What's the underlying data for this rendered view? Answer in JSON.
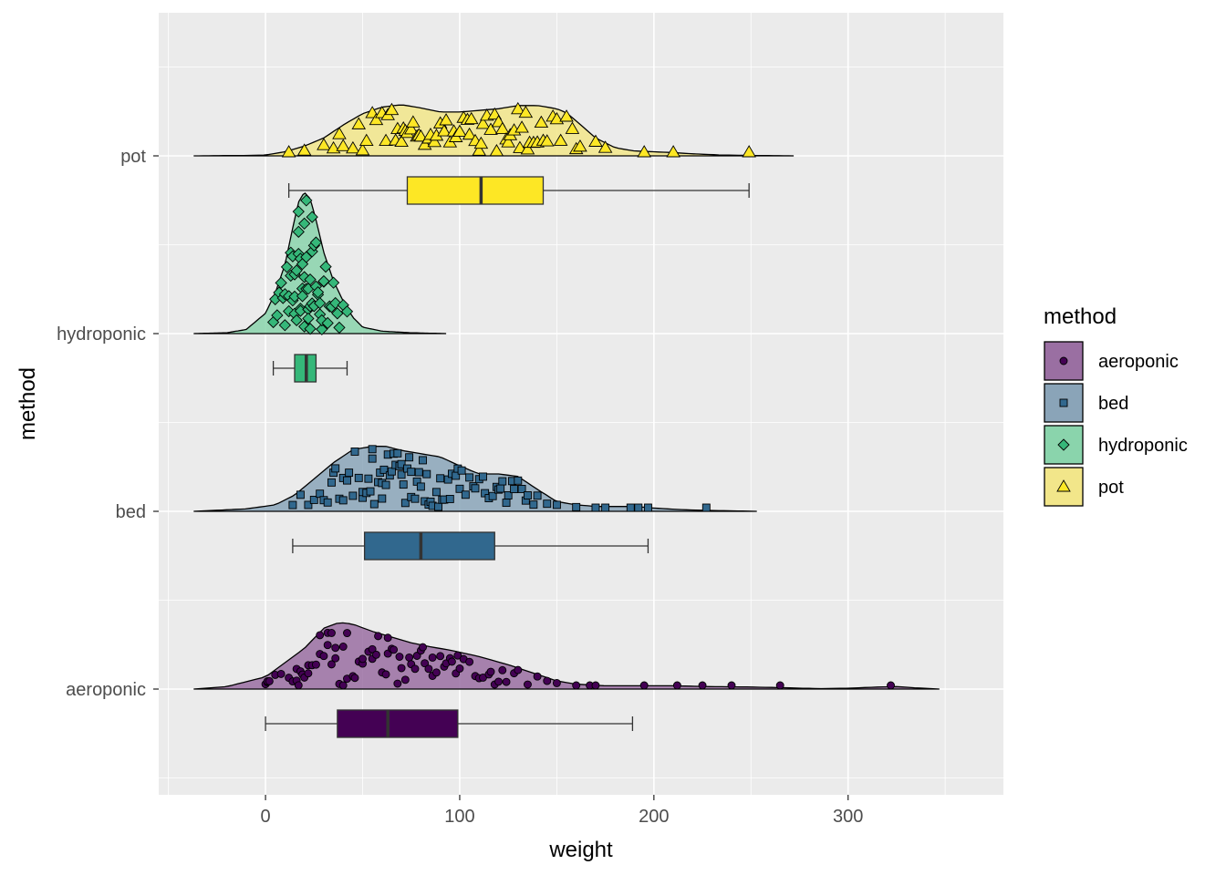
{
  "chart_data": {
    "type": "raincloud",
    "xlabel": "weight",
    "ylabel": "method",
    "xlim": [
      -55,
      380
    ],
    "x_ticks": [
      0,
      100,
      200,
      300
    ],
    "categories": [
      "aeroponic",
      "bed",
      "hydroponic",
      "pot"
    ],
    "grid": true,
    "legend": {
      "title": "method",
      "placement": "right",
      "entries": [
        "aeroponic",
        "bed",
        "hydroponic",
        "pot"
      ]
    },
    "series": [
      {
        "name": "aeroponic",
        "fill_color": "#440154",
        "density_color": "#9a6fa2",
        "shape": "circle",
        "density_range": [
          -37,
          347
        ],
        "density": [
          [
            -37,
            0.0
          ],
          [
            -20,
            0.03
          ],
          [
            0,
            0.15
          ],
          [
            20,
            0.5
          ],
          [
            30,
            0.75
          ],
          [
            38,
            0.82
          ],
          [
            45,
            0.8
          ],
          [
            55,
            0.71
          ],
          [
            65,
            0.64
          ],
          [
            75,
            0.57
          ],
          [
            85,
            0.52
          ],
          [
            95,
            0.48
          ],
          [
            110,
            0.4
          ],
          [
            125,
            0.3
          ],
          [
            140,
            0.18
          ],
          [
            150,
            0.1
          ],
          [
            160,
            0.06
          ],
          [
            175,
            0.04
          ],
          [
            190,
            0.04
          ],
          [
            210,
            0.04
          ],
          [
            230,
            0.03
          ],
          [
            250,
            0.025
          ],
          [
            270,
            0.015
          ],
          [
            285,
            0.005
          ],
          [
            300,
            0.01
          ],
          [
            315,
            0.025
          ],
          [
            325,
            0.03
          ],
          [
            335,
            0.015
          ],
          [
            347,
            0.0
          ]
        ],
        "box": {
          "min": 0,
          "q1": 37,
          "median": 63,
          "q3": 99,
          "max": 189
        },
        "points": [
          0,
          1,
          1,
          2,
          5,
          8,
          12,
          14,
          16,
          16,
          17,
          18,
          19,
          20,
          22,
          22,
          24,
          26,
          28,
          28,
          30,
          32,
          32,
          34,
          34,
          36,
          36,
          38,
          40,
          40,
          42,
          42,
          45,
          46,
          48,
          50,
          50,
          53,
          55,
          55,
          57,
          58,
          60,
          62,
          63,
          63,
          65,
          66,
          68,
          69,
          70,
          72,
          74,
          75,
          77,
          78,
          80,
          81,
          82,
          84,
          86,
          86,
          88,
          90,
          92,
          93,
          95,
          96,
          98,
          99,
          100,
          102,
          105,
          108,
          110,
          112,
          115,
          116,
          118,
          120,
          122,
          124,
          128,
          130,
          135,
          140,
          145,
          150,
          160,
          167,
          170,
          195,
          212,
          225,
          240,
          265,
          322
        ]
      },
      {
        "name": "bed",
        "fill_color": "#31688e",
        "density_color": "#8aa4b8",
        "shape": "square",
        "density_range": [
          -37,
          253
        ],
        "density": [
          [
            -37,
            0.0
          ],
          [
            -10,
            0.03
          ],
          [
            5,
            0.08
          ],
          [
            15,
            0.2
          ],
          [
            25,
            0.4
          ],
          [
            35,
            0.6
          ],
          [
            45,
            0.76
          ],
          [
            55,
            0.8
          ],
          [
            62,
            0.8
          ],
          [
            70,
            0.75
          ],
          [
            80,
            0.71
          ],
          [
            90,
            0.67
          ],
          [
            100,
            0.56
          ],
          [
            110,
            0.46
          ],
          [
            120,
            0.46
          ],
          [
            130,
            0.43
          ],
          [
            140,
            0.27
          ],
          [
            150,
            0.12
          ],
          [
            160,
            0.08
          ],
          [
            170,
            0.06
          ],
          [
            180,
            0.06
          ],
          [
            190,
            0.06
          ],
          [
            200,
            0.04
          ],
          [
            215,
            0.02
          ],
          [
            230,
            0.01
          ],
          [
            253,
            0.0
          ]
        ],
        "box": {
          "min": 14,
          "q1": 51,
          "median": 80,
          "q3": 118,
          "max": 197
        },
        "points": [
          14,
          18,
          22,
          25,
          28,
          30,
          32,
          34,
          35,
          36,
          38,
          40,
          40,
          42,
          43,
          45,
          46,
          48,
          50,
          50,
          52,
          53,
          54,
          55,
          55,
          56,
          58,
          59,
          60,
          60,
          61,
          62,
          63,
          64,
          65,
          66,
          67,
          68,
          69,
          70,
          70,
          71,
          72,
          73,
          74,
          75,
          75,
          77,
          78,
          79,
          80,
          81,
          82,
          83,
          84,
          85,
          86,
          88,
          89,
          90,
          91,
          92,
          94,
          95,
          96,
          98,
          99,
          100,
          101,
          103,
          105,
          107,
          108,
          110,
          112,
          113,
          115,
          117,
          119,
          120,
          121,
          122,
          124,
          125,
          127,
          128,
          130,
          132,
          134,
          135,
          138,
          140,
          145,
          150,
          160,
          170,
          175,
          188,
          192,
          197,
          227
        ]
      },
      {
        "name": "hydroponic",
        "fill_color": "#35b779",
        "density_color": "#8ad4ac",
        "shape": "diamond",
        "density_range": [
          -37,
          93
        ],
        "density": [
          [
            -37,
            0.0
          ],
          [
            -20,
            0.01
          ],
          [
            -10,
            0.05
          ],
          [
            0,
            0.25
          ],
          [
            5,
            0.5
          ],
          [
            10,
            0.85
          ],
          [
            14,
            1.3
          ],
          [
            17,
            1.62
          ],
          [
            20,
            1.74
          ],
          [
            23,
            1.66
          ],
          [
            26,
            1.4
          ],
          [
            30,
            1.0
          ],
          [
            35,
            0.65
          ],
          [
            40,
            0.4
          ],
          [
            45,
            0.2
          ],
          [
            50,
            0.08
          ],
          [
            60,
            0.03
          ],
          [
            75,
            0.01
          ],
          [
            93,
            0.0
          ]
        ],
        "box": {
          "min": 4,
          "q1": 15,
          "median": 21,
          "q3": 26,
          "max": 42
        },
        "points": [
          4,
          5,
          6,
          7,
          8,
          9,
          10,
          10,
          11,
          12,
          12,
          13,
          13,
          14,
          14,
          15,
          15,
          15,
          16,
          16,
          17,
          17,
          17,
          18,
          18,
          18,
          19,
          19,
          19,
          20,
          20,
          20,
          21,
          21,
          21,
          22,
          22,
          22,
          23,
          23,
          23,
          24,
          24,
          24,
          25,
          25,
          26,
          26,
          27,
          27,
          28,
          28,
          29,
          29,
          30,
          30,
          31,
          32,
          33,
          34,
          35,
          36,
          37,
          38,
          40,
          42
        ]
      },
      {
        "name": "pot",
        "fill_color": "#fde725",
        "density_color": "#f2e68a",
        "shape": "triangle",
        "density_range": [
          -37,
          272
        ],
        "density": [
          [
            -37,
            0.0
          ],
          [
            -10,
            0.005
          ],
          [
            0,
            0.01
          ],
          [
            10,
            0.05
          ],
          [
            20,
            0.12
          ],
          [
            30,
            0.22
          ],
          [
            40,
            0.38
          ],
          [
            50,
            0.52
          ],
          [
            60,
            0.6
          ],
          [
            70,
            0.63
          ],
          [
            80,
            0.59
          ],
          [
            90,
            0.54
          ],
          [
            100,
            0.54
          ],
          [
            110,
            0.56
          ],
          [
            120,
            0.58
          ],
          [
            130,
            0.62
          ],
          [
            140,
            0.62
          ],
          [
            150,
            0.58
          ],
          [
            155,
            0.53
          ],
          [
            160,
            0.43
          ],
          [
            170,
            0.22
          ],
          [
            180,
            0.1
          ],
          [
            190,
            0.06
          ],
          [
            200,
            0.05
          ],
          [
            210,
            0.04
          ],
          [
            220,
            0.025
          ],
          [
            235,
            0.01
          ],
          [
            250,
            0.005
          ],
          [
            272,
            0.0
          ]
        ],
        "box": {
          "min": 12,
          "q1": 73,
          "median": 111,
          "q3": 143,
          "max": 249
        },
        "points": [
          12,
          20,
          30,
          35,
          38,
          40,
          45,
          48,
          50,
          52,
          55,
          57,
          60,
          62,
          63,
          65,
          67,
          68,
          70,
          71,
          72,
          73,
          75,
          76,
          78,
          79,
          80,
          82,
          84,
          85,
          87,
          88,
          90,
          92,
          93,
          95,
          97,
          98,
          100,
          102,
          104,
          105,
          106,
          108,
          110,
          111,
          112,
          114,
          116,
          118,
          119,
          120,
          122,
          124,
          125,
          126,
          128,
          130,
          131,
          132,
          134,
          135,
          136,
          138,
          140,
          142,
          143,
          145,
          148,
          150,
          152,
          155,
          158,
          160,
          162,
          170,
          175,
          195,
          210,
          249
        ]
      }
    ]
  }
}
